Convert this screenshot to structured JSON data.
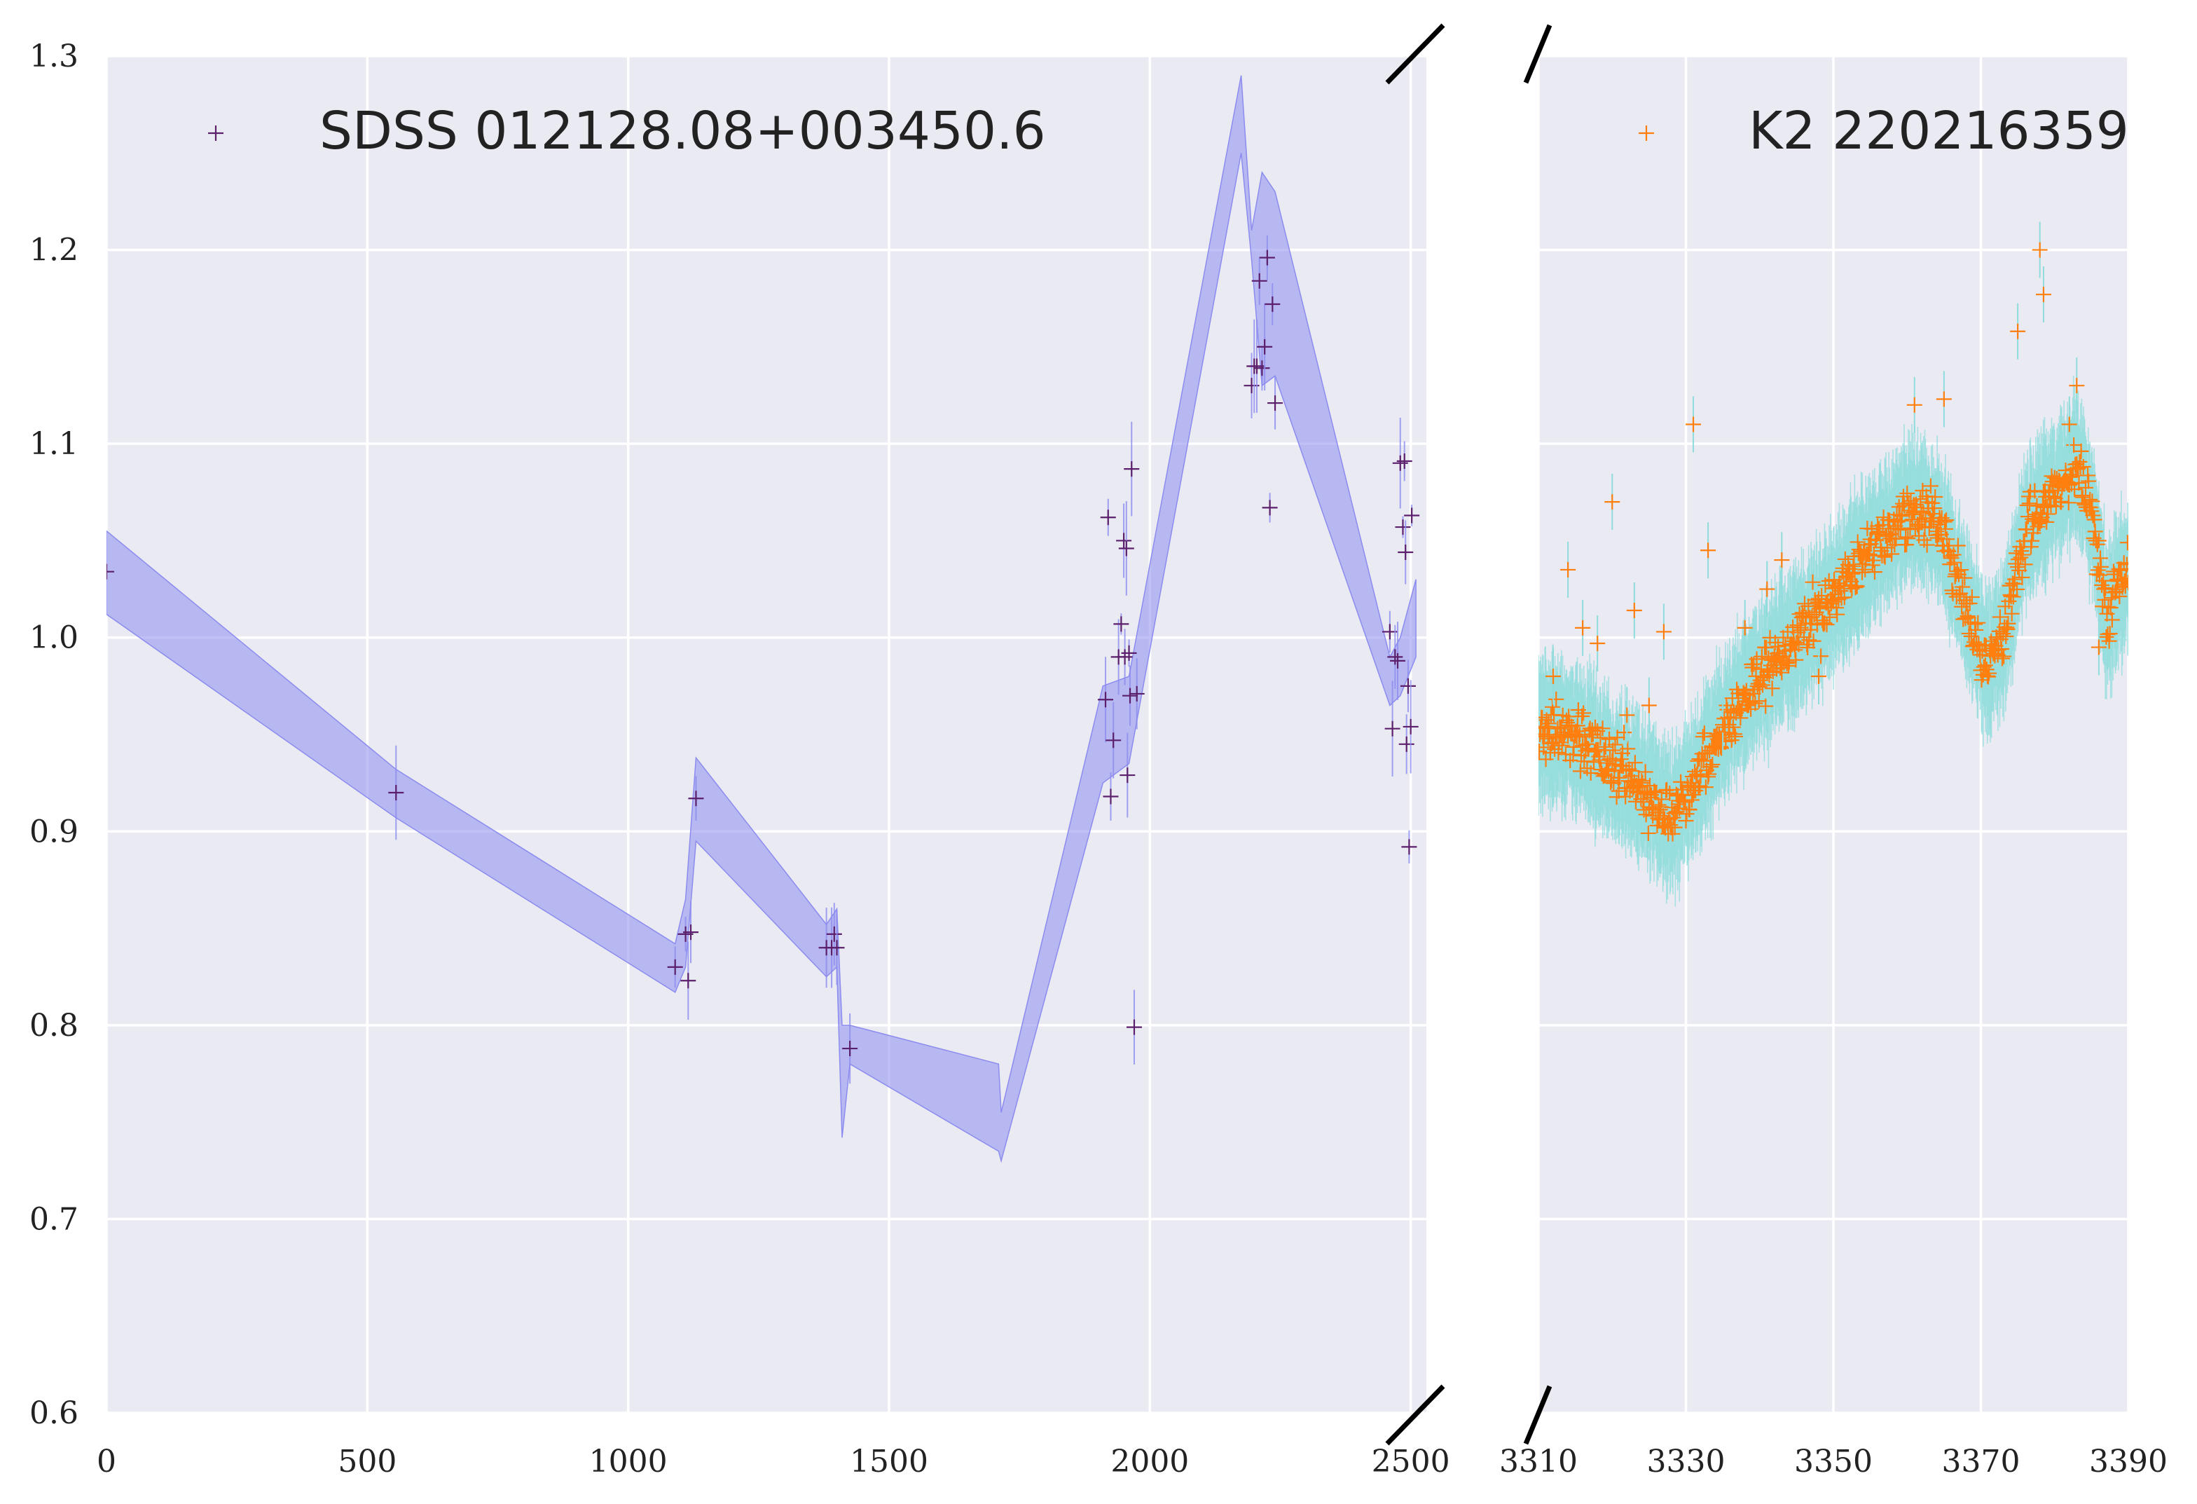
{
  "chart_data": [
    {
      "type": "line",
      "panel": "left",
      "xlim": [
        0,
        2530
      ],
      "ylim": [
        0.6,
        1.3
      ],
      "xticks": [
        0,
        500,
        1000,
        1500,
        2000,
        2500
      ],
      "yticks": [
        0.6,
        0.7,
        0.8,
        0.9,
        1.0,
        1.1,
        1.2,
        1.3
      ],
      "grid": true,
      "legend_position": "top-left",
      "legend": "SDSS 012128.08+003450.6",
      "colors": {
        "points": "#5b1f6b",
        "band": "#8c8cf0",
        "background": "#eaeaf2"
      },
      "series": [
        {
          "name": "SDSS 012128.08+003450.6",
          "kind": "points",
          "x": [
            0,
            555,
            1090,
            1110,
            1115,
            1120,
            1130,
            1380,
            1390,
            1395,
            1400,
            1425,
            1915,
            1920,
            1925,
            1930,
            1940,
            1945,
            1950,
            1952,
            1955,
            1957,
            1960,
            1962,
            1965,
            1970,
            1975,
            2195,
            2200,
            2205,
            2210,
            2215,
            2220,
            2225,
            2230,
            2235,
            2240,
            2460,
            2465,
            2470,
            2475,
            2480,
            2485,
            2488,
            2490,
            2492,
            2495,
            2497,
            2500,
            2502
          ],
          "y": [
            1.034,
            0.92,
            0.83,
            0.847,
            0.823,
            0.848,
            0.917,
            0.84,
            0.84,
            0.847,
            0.84,
            0.788,
            0.968,
            1.062,
            0.918,
            0.947,
            0.99,
            1.007,
            1.05,
            0.99,
            1.046,
            0.929,
            0.992,
            0.97,
            1.087,
            0.799,
            0.971,
            1.13,
            1.14,
            1.14,
            1.184,
            1.139,
            1.15,
            1.196,
            1.067,
            1.172,
            1.121,
            1.003,
            0.953,
            0.99,
            0.988,
            1.09,
            1.057,
            1.091,
            1.044,
            0.945,
            0.975,
            0.892,
            0.954,
            1.063
          ]
        },
        {
          "name": "",
          "kind": "band",
          "x": [
            0,
            555,
            1090,
            1110,
            1130,
            1380,
            1400,
            1410,
            1425,
            1710,
            1715,
            1910,
            1960,
            2175,
            2195,
            2215,
            2240,
            2460,
            2480,
            2510
          ],
          "lower": [
            1.012,
            0.907,
            0.817,
            0.83,
            0.895,
            0.825,
            0.83,
            0.742,
            0.78,
            0.735,
            0.73,
            0.925,
            0.935,
            1.25,
            1.195,
            1.13,
            1.135,
            0.965,
            0.97,
            0.99
          ],
          "upper": [
            1.055,
            0.932,
            0.842,
            0.865,
            0.938,
            0.852,
            0.86,
            0.8,
            0.8,
            0.78,
            0.755,
            0.975,
            0.98,
            1.29,
            1.21,
            1.24,
            1.23,
            0.99,
            1.0,
            1.03
          ]
        }
      ]
    },
    {
      "type": "scatter",
      "panel": "right",
      "xlim": [
        3310,
        3390
      ],
      "ylim": [
        0.6,
        1.3
      ],
      "xticks": [
        3310,
        3330,
        3350,
        3370,
        3390
      ],
      "grid": true,
      "legend_position": "top-right",
      "legend": "K2 220216359",
      "colors": {
        "points": "#ff7f0e",
        "band": "#8fdcdc",
        "background": "#eaeaf2"
      },
      "trend": {
        "x": [
          3310,
          3315,
          3320,
          3325,
          3328,
          3332,
          3336,
          3340,
          3345,
          3350,
          3355,
          3360,
          3364,
          3366,
          3369,
          3371,
          3373,
          3376,
          3380,
          3383,
          3385,
          3387,
          3390
        ],
        "y": [
          0.955,
          0.948,
          0.935,
          0.918,
          0.905,
          0.93,
          0.96,
          0.98,
          1.0,
          1.02,
          1.045,
          1.065,
          1.06,
          1.04,
          1.005,
          0.985,
          1.0,
          1.055,
          1.075,
          1.09,
          1.065,
          1.01,
          1.035
        ]
      },
      "outliers": {
        "x": [
          3312,
          3314,
          3316,
          3318,
          3320,
          3322,
          3323,
          3325,
          3327,
          3331,
          3333,
          3335,
          3338,
          3341,
          3343,
          3348,
          3361,
          3365,
          3375,
          3378,
          3378.5,
          3382,
          3383,
          3386
        ],
        "y": [
          0.98,
          1.035,
          1.005,
          0.997,
          1.07,
          0.96,
          1.014,
          0.965,
          1.003,
          1.11,
          1.045,
          0.955,
          1.005,
          1.025,
          1.04,
          0.98,
          1.12,
          1.123,
          1.158,
          1.2,
          1.177,
          1.11,
          1.13,
          0.995
        ]
      },
      "scatter_sd": 0.01,
      "band_halfwidth": 0.03
    }
  ],
  "break_marks": true
}
